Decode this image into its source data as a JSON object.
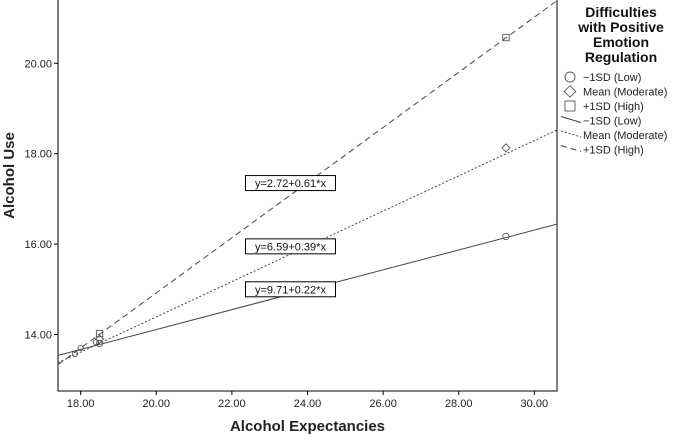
{
  "chart_data": {
    "type": "scatter",
    "title": "",
    "xlabel": "Alcohol Expectancies",
    "ylabel": "Alcohol Use",
    "xlim": [
      17.4,
      30.6
    ],
    "ylim": [
      12.75,
      21.4
    ],
    "x_ticks": [
      18,
      20,
      22,
      24,
      26,
      28,
      30
    ],
    "y_ticks": [
      14,
      16,
      18,
      20
    ],
    "x_tick_labels": [
      "18.00",
      "20.00",
      "22.00",
      "24.00",
      "26.00",
      "28.00",
      "30.00"
    ],
    "y_tick_labels": [
      "14.00",
      "16.00",
      "18.00",
      "20.00"
    ],
    "grid": false,
    "legend_placement": "right",
    "legend": {
      "title_lines": [
        "Difficulties",
        "with Positive",
        "Emotion",
        "Regulation"
      ],
      "marker_entries": [
        {
          "label": "−1SD (Low)",
          "marker": "circle"
        },
        {
          "label": "Mean (Moderate)",
          "marker": "diamond"
        },
        {
          "label": "+1SD (High)",
          "marker": "square"
        }
      ],
      "line_entries": [
        {
          "label": "−1SD (Low)",
          "dash": "solid"
        },
        {
          "label": "Mean (Moderate)",
          "dash": "dotted"
        },
        {
          "label": "+1SD (High)",
          "dash": "dashed"
        }
      ]
    },
    "series": [
      {
        "name": "−1SD (Low)",
        "marker": "circle",
        "dash": "solid",
        "intercept": 9.71,
        "slope": 0.22,
        "equation": "y=9.71+0.22*x",
        "points": [
          [
            18.5,
            13.8
          ],
          [
            29.25,
            16.17
          ]
        ],
        "equation_pos": [
          23.55,
          15.0
        ]
      },
      {
        "name": "Mean (Moderate)",
        "marker": "diamond",
        "dash": "dotted",
        "intercept": 6.59,
        "slope": 0.39,
        "equation": "y=6.59+0.39*x",
        "points": [
          [
            18.5,
            13.9
          ],
          [
            29.25,
            18.13
          ]
        ],
        "equation_pos": [
          23.55,
          15.95
        ]
      },
      {
        "name": "+1SD (High)",
        "marker": "square",
        "dash": "dashed",
        "intercept": 2.72,
        "slope": 0.61,
        "equation": "y=2.72+0.61*x",
        "points": [
          [
            18.5,
            14.02
          ],
          [
            29.25,
            20.57
          ]
        ],
        "equation_pos": [
          23.55,
          17.35
        ]
      }
    ],
    "extra_points": [
      {
        "x": 17.85,
        "y": 13.57,
        "marker": "circle"
      },
      {
        "x": 18.0,
        "y": 13.7,
        "marker": "circle"
      },
      {
        "x": 18.4,
        "y": 13.83,
        "marker": "circle"
      }
    ]
  }
}
